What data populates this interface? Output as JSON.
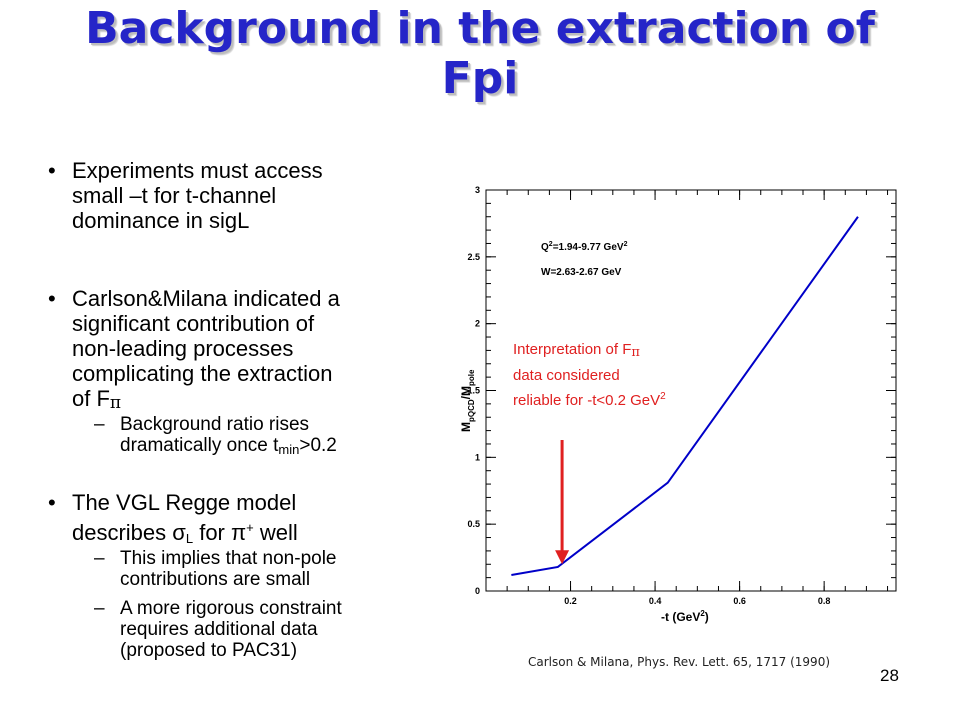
{
  "title": {
    "line1": "Background in the extraction of",
    "line2": "Fpi"
  },
  "bullets": [
    {
      "lines": [
        "Experiments must access",
        "small –t for t-channel",
        "dominance in sigL"
      ]
    },
    {
      "lines": [
        "Carlson&Milana indicated a",
        "significant contribution of",
        "non-leading processes",
        "complicating the extraction"
      ],
      "last_prefix": "of F",
      "last_symbol": "π",
      "sub": {
        "dash": "–",
        "line1": "Background ratio rises",
        "line2_prefix": "dramatically once t",
        "line2_subscript": "min",
        "line2_suffix": ">0.2"
      }
    },
    {
      "line1_text": "The VGL Regge model",
      "line2_prefix": "describes σ",
      "line2_subscript": "L",
      "line2_middle": " for π",
      "line2_superscript": "+",
      "line2_suffix": " well",
      "subs": [
        {
          "dash": "–",
          "lines": [
            "This implies that non-pole",
            "contributions are small"
          ]
        },
        {
          "dash": "–",
          "lines": [
            "A more rigorous constraint",
            "requires additional data",
            "(proposed to PAC31)"
          ]
        }
      ]
    }
  ],
  "bullet_symbol": "•",
  "annotation": {
    "line1_prefix": "Interpretation of F",
    "line1_symbol": "π",
    "line2": "data considered",
    "line3_prefix": "reliable for -t<0.2 GeV",
    "line3_superscript": "2",
    "color": "#e02020"
  },
  "chart_data": {
    "type": "line",
    "series": [
      {
        "x": [
          0.06,
          0.17,
          0.43,
          0.88
        ],
        "y": [
          0.12,
          0.18,
          0.81,
          2.8
        ],
        "color": "#0000c8"
      }
    ],
    "xlim": [
      0.0,
      0.97
    ],
    "ylim": [
      0,
      3
    ],
    "xticks": [
      0.2,
      0.4,
      0.6,
      0.8
    ],
    "xtick_labels": [
      "0.2",
      "0.4",
      "0.6",
      "0.8"
    ],
    "yticks": [
      0,
      0.5,
      1,
      1.5,
      2,
      2.5,
      3
    ],
    "ytick_labels": [
      "0",
      "0.5",
      "1",
      "1.5",
      "2",
      "2.5",
      "3"
    ],
    "xlabel_prefix": "-t (GeV",
    "xlabel_superscript": "2",
    "xlabel_suffix": ")",
    "ylabel": {
      "m1": "M",
      "s1": "pQCD",
      "slash": "/M",
      "s2": "pole"
    },
    "legend": {
      "q2_prefix": "Q",
      "q2_sup": "2",
      "q2_mid": "=1.94-9.77 GeV",
      "q2_sup2": "2",
      "w_text": "W=2.63-2.67 GeV"
    },
    "arrow": {
      "x": 0.18,
      "y_from": 1.13,
      "y_to": 0.2,
      "color": "#e02020"
    },
    "grid": false
  },
  "citation": "Carlson & Milana, Phys. Rev. Lett. 65, 1717 (1990)",
  "page_number": "28"
}
